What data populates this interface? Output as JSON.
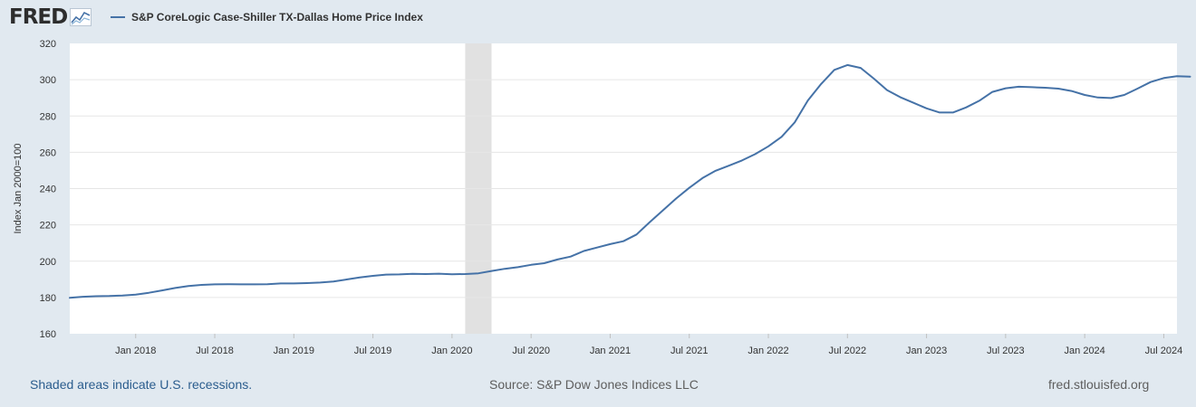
{
  "header": {
    "logo_text": "FRED",
    "logo_icon": "fred-chart-icon",
    "legend_label": "S&P CoreLogic Case-Shiller TX-Dallas Home Price Index"
  },
  "colors": {
    "page_bg": "#e1e9f0",
    "plot_bg": "#ffffff",
    "series": "#4572a7",
    "recession": "#e1e1e1",
    "grid": "#e6e6e6"
  },
  "footer": {
    "recession_note": "Shaded areas indicate U.S. recessions.",
    "source": "Source: S&P Dow Jones Indices LLC",
    "site": "fred.stlouisfed.org"
  },
  "chart_data": {
    "type": "line",
    "ylabel": "Index Jan 2000=100",
    "ylim": [
      160,
      320
    ],
    "yticks": [
      160,
      180,
      200,
      220,
      240,
      260,
      280,
      300,
      320
    ],
    "xlim": [
      "2017-08",
      "2024-08"
    ],
    "xticks": [
      {
        "date": "2018-01",
        "label": "Jan 2018"
      },
      {
        "date": "2018-07",
        "label": "Jul 2018"
      },
      {
        "date": "2019-01",
        "label": "Jan 2019"
      },
      {
        "date": "2019-07",
        "label": "Jul 2019"
      },
      {
        "date": "2020-01",
        "label": "Jan 2020"
      },
      {
        "date": "2020-07",
        "label": "Jul 2020"
      },
      {
        "date": "2021-01",
        "label": "Jan 2021"
      },
      {
        "date": "2021-07",
        "label": "Jul 2021"
      },
      {
        "date": "2022-01",
        "label": "Jan 2022"
      },
      {
        "date": "2022-07",
        "label": "Jul 2022"
      },
      {
        "date": "2023-01",
        "label": "Jan 2023"
      },
      {
        "date": "2023-07",
        "label": "Jul 2023"
      },
      {
        "date": "2024-01",
        "label": "Jan 2024"
      },
      {
        "date": "2024-07",
        "label": "Jul 2024"
      }
    ],
    "recessions": [
      {
        "start": "2020-02",
        "end": "2020-04"
      }
    ],
    "grid": true,
    "legend_position": "top-left",
    "series": [
      {
        "name": "S&P CoreLogic Case-Shiller TX-Dallas Home Price Index",
        "points": [
          [
            "2017-08",
            179.8
          ],
          [
            "2017-09",
            180.4
          ],
          [
            "2017-10",
            180.7
          ],
          [
            "2017-11",
            180.8
          ],
          [
            "2017-12",
            181.1
          ],
          [
            "2018-01",
            181.6
          ],
          [
            "2018-02",
            182.6
          ],
          [
            "2018-03",
            183.9
          ],
          [
            "2018-04",
            185.2
          ],
          [
            "2018-05",
            186.3
          ],
          [
            "2018-06",
            186.9
          ],
          [
            "2018-07",
            187.2
          ],
          [
            "2018-08",
            187.3
          ],
          [
            "2018-09",
            187.2
          ],
          [
            "2018-10",
            187.2
          ],
          [
            "2018-11",
            187.3
          ],
          [
            "2018-12",
            187.7
          ],
          [
            "2019-01",
            187.7
          ],
          [
            "2019-02",
            187.9
          ],
          [
            "2019-03",
            188.2
          ],
          [
            "2019-04",
            188.8
          ],
          [
            "2019-05",
            189.9
          ],
          [
            "2019-06",
            191.0
          ],
          [
            "2019-07",
            191.9
          ],
          [
            "2019-08",
            192.6
          ],
          [
            "2019-09",
            192.7
          ],
          [
            "2019-10",
            193.0
          ],
          [
            "2019-11",
            192.9
          ],
          [
            "2019-12",
            193.1
          ],
          [
            "2020-01",
            192.8
          ],
          [
            "2020-02",
            192.9
          ],
          [
            "2020-03",
            193.3
          ],
          [
            "2020-04",
            194.6
          ],
          [
            "2020-05",
            195.8
          ],
          [
            "2020-06",
            196.7
          ],
          [
            "2020-07",
            198.0
          ],
          [
            "2020-08",
            198.9
          ],
          [
            "2020-09",
            200.9
          ],
          [
            "2020-10",
            202.5
          ],
          [
            "2020-11",
            205.6
          ],
          [
            "2020-12",
            207.5
          ],
          [
            "2021-01",
            209.4
          ],
          [
            "2021-02",
            211.0
          ],
          [
            "2021-03",
            214.7
          ],
          [
            "2021-04",
            221.5
          ],
          [
            "2021-05",
            228.0
          ],
          [
            "2021-06",
            234.5
          ],
          [
            "2021-07",
            240.4
          ],
          [
            "2021-08",
            245.8
          ],
          [
            "2021-09",
            249.8
          ],
          [
            "2021-10",
            252.6
          ],
          [
            "2021-11",
            255.5
          ],
          [
            "2021-12",
            259.0
          ],
          [
            "2022-01",
            263.3
          ],
          [
            "2022-02",
            268.5
          ],
          [
            "2022-03",
            276.5
          ],
          [
            "2022-04",
            288.6
          ],
          [
            "2022-05",
            297.6
          ],
          [
            "2022-06",
            305.4
          ],
          [
            "2022-07",
            308.1
          ],
          [
            "2022-08",
            306.5
          ],
          [
            "2022-09",
            300.6
          ],
          [
            "2022-10",
            294.3
          ],
          [
            "2022-11",
            290.4
          ],
          [
            "2022-12",
            287.3
          ],
          [
            "2023-01",
            284.2
          ],
          [
            "2023-02",
            281.9
          ],
          [
            "2023-03",
            281.9
          ],
          [
            "2023-04",
            284.7
          ],
          [
            "2023-05",
            288.4
          ],
          [
            "2023-06",
            293.3
          ],
          [
            "2023-07",
            295.3
          ],
          [
            "2023-08",
            296.1
          ],
          [
            "2023-09",
            295.9
          ],
          [
            "2023-10",
            295.6
          ],
          [
            "2023-11",
            295.1
          ],
          [
            "2023-12",
            293.8
          ],
          [
            "2024-01",
            291.6
          ],
          [
            "2024-02",
            290.2
          ],
          [
            "2024-03",
            289.9
          ],
          [
            "2024-04",
            291.6
          ],
          [
            "2024-05",
            295.1
          ],
          [
            "2024-06",
            298.7
          ],
          [
            "2024-07",
            300.9
          ],
          [
            "2024-08",
            301.9
          ],
          [
            "2024-09",
            301.7
          ]
        ]
      }
    ]
  }
}
